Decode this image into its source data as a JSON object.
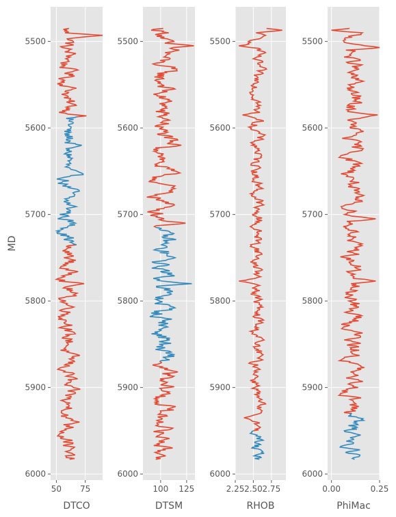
{
  "chart_data": {
    "type": "line",
    "style": "ggplot",
    "background": "#e5e5e5",
    "grid": true,
    "grid_color": "#ffffff",
    "series_colors": {
      "primary": "#e24a33",
      "secondary": "#348abd"
    },
    "shared_y": {
      "label": "MD",
      "range": [
        6007,
        5460
      ],
      "ticks": [
        5500,
        5600,
        5700,
        5800,
        5900,
        6000
      ],
      "inverted": true
    },
    "md_start": 5485,
    "md_end": 5983,
    "tracks": [
      {
        "xlabel": "DTCO",
        "xlim": [
          45,
          90
        ],
        "xticks": [
          50,
          75
        ],
        "base": 60,
        "amp": 7,
        "spikes": [
          [
            5493,
            93
          ],
          [
            5586,
            76
          ],
          [
            5620,
            72
          ],
          [
            5780,
            74
          ],
          [
            5940,
            70
          ]
        ],
        "highlight": [
          5587,
          5735
        ],
        "highlight_color": "secondary"
      },
      {
        "xlabel": "DTSM",
        "xlim": [
          83,
          133
        ],
        "xticks": [
          100,
          125
        ],
        "base": 102,
        "amp": 10,
        "spikes": [
          [
            5505,
            132
          ],
          [
            5510,
            118
          ],
          [
            5620,
            120
          ],
          [
            5710,
            124
          ],
          [
            5780,
            130
          ]
        ],
        "highlight": [
          5715,
          5870
        ],
        "highlight_color": "secondary"
      },
      {
        "xlabel": "RHOB",
        "xlim": [
          2.25,
          2.95
        ],
        "xticks": [
          2.25,
          2.5,
          2.75
        ],
        "tick_labels": [
          "2.25",
          "2.50",
          "2.75"
        ],
        "base": 2.55,
        "amp": 0.08,
        "spikes": [
          [
            5487,
            2.9
          ],
          [
            5505,
            2.3
          ],
          [
            5585,
            2.35
          ],
          [
            5777,
            2.3
          ],
          [
            5935,
            2.37
          ]
        ],
        "highlight": [
          5950,
          5983
        ],
        "highlight_color": "secondary"
      },
      {
        "xlabel": "PhiMac",
        "xlim": [
          -0.02,
          0.25
        ],
        "xticks": [
          0.0,
          0.25
        ],
        "tick_labels": [
          "0.00",
          "0.25"
        ],
        "base": 0.11,
        "amp": 0.045,
        "spikes": [
          [
            5487,
            0.0
          ],
          [
            5507,
            0.25
          ],
          [
            5585,
            0.24
          ],
          [
            5705,
            0.23
          ],
          [
            5777,
            0.23
          ]
        ],
        "highlight": [
          5930,
          5983
        ],
        "highlight_color": "secondary"
      }
    ]
  }
}
